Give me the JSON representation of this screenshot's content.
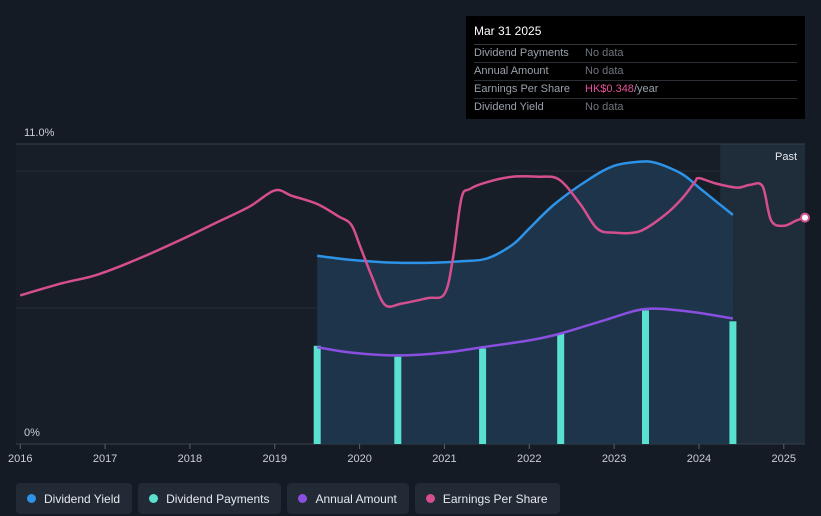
{
  "chart_data": {
    "type": "line",
    "title": "",
    "y_axis": {
      "min_label": "0%",
      "max_label": "11.0%",
      "ylim": [
        0,
        11
      ]
    },
    "x_axis": {
      "ticks": [
        "2016",
        "2017",
        "2018",
        "2019",
        "2020",
        "2021",
        "2022",
        "2023",
        "2024",
        "2025"
      ],
      "xlim": [
        2015.95,
        2025.25
      ]
    },
    "past_label": "Past",
    "past_region_start": 2024.25,
    "grid": true,
    "series": [
      {
        "name": "Dividend Yield",
        "kind": "area-line",
        "color": "#2d93e8",
        "x": [
          2019.5,
          2019.9,
          2020.4,
          2020.9,
          2021.2,
          2021.5,
          2021.8,
          2022.0,
          2022.3,
          2022.7,
          2023.0,
          2023.3,
          2023.5,
          2023.8,
          2024.0,
          2024.2,
          2024.4
        ],
        "values": [
          6.9,
          6.75,
          6.65,
          6.65,
          6.7,
          6.8,
          7.3,
          7.9,
          8.8,
          9.7,
          10.2,
          10.35,
          10.3,
          9.9,
          9.4,
          8.9,
          8.4
        ]
      },
      {
        "name": "Dividend Payments",
        "kind": "bars",
        "color": "#59e0cf",
        "x": [
          2019.5,
          2020.45,
          2021.45,
          2022.37,
          2023.37,
          2024.4
        ],
        "values": [
          3.6,
          3.2,
          3.5,
          4.05,
          4.9,
          4.5
        ]
      },
      {
        "name": "Annual Amount",
        "kind": "line",
        "color": "#8b4fe0",
        "x": [
          2019.5,
          2019.9,
          2020.45,
          2021.0,
          2021.45,
          2022.0,
          2022.37,
          2022.9,
          2023.37,
          2023.9,
          2024.4
        ],
        "values": [
          3.55,
          3.35,
          3.25,
          3.35,
          3.55,
          3.8,
          4.05,
          4.55,
          4.95,
          4.85,
          4.6
        ]
      },
      {
        "name": "Earnings Per Share",
        "kind": "line",
        "color": "#d54f8f",
        "x": [
          2016.0,
          2016.5,
          2016.9,
          2017.4,
          2017.9,
          2018.3,
          2018.7,
          2019.0,
          2019.2,
          2019.5,
          2019.75,
          2019.9,
          2020.0,
          2020.15,
          2020.3,
          2020.5,
          2020.8,
          2021.0,
          2021.1,
          2021.2,
          2021.3,
          2021.5,
          2021.8,
          2022.1,
          2022.35,
          2022.6,
          2022.8,
          2023.0,
          2023.3,
          2023.6,
          2023.8,
          2023.95,
          2024.0,
          2024.2,
          2024.45,
          2024.6,
          2024.75,
          2024.85,
          2025.0,
          2025.15,
          2025.25
        ],
        "values": [
          5.45,
          5.9,
          6.2,
          6.8,
          7.5,
          8.1,
          8.7,
          9.3,
          9.1,
          8.8,
          8.35,
          8.05,
          7.3,
          6.1,
          5.1,
          5.15,
          5.35,
          5.5,
          6.8,
          9.0,
          9.35,
          9.6,
          9.8,
          9.8,
          9.7,
          8.8,
          7.9,
          7.75,
          7.8,
          8.4,
          9.0,
          9.6,
          9.75,
          9.55,
          9.4,
          9.5,
          9.45,
          8.2,
          8.0,
          8.2,
          8.3
        ]
      }
    ]
  },
  "tooltip": {
    "date": "Mar 31 2025",
    "rows": [
      {
        "label": "Dividend Payments",
        "value": "No data"
      },
      {
        "label": "Annual Amount",
        "value": "No data"
      },
      {
        "label": "Earnings Per Share",
        "value": "HK$0.348",
        "unit": "/year"
      },
      {
        "label": "Dividend Yield",
        "value": "No data"
      }
    ]
  },
  "legend": [
    {
      "label": "Dividend Yield",
      "color": "#2d93e8"
    },
    {
      "label": "Dividend Payments",
      "color": "#59e0cf"
    },
    {
      "label": "Annual Amount",
      "color": "#8b4fe0"
    },
    {
      "label": "Earnings Per Share",
      "color": "#d54f8f"
    }
  ]
}
